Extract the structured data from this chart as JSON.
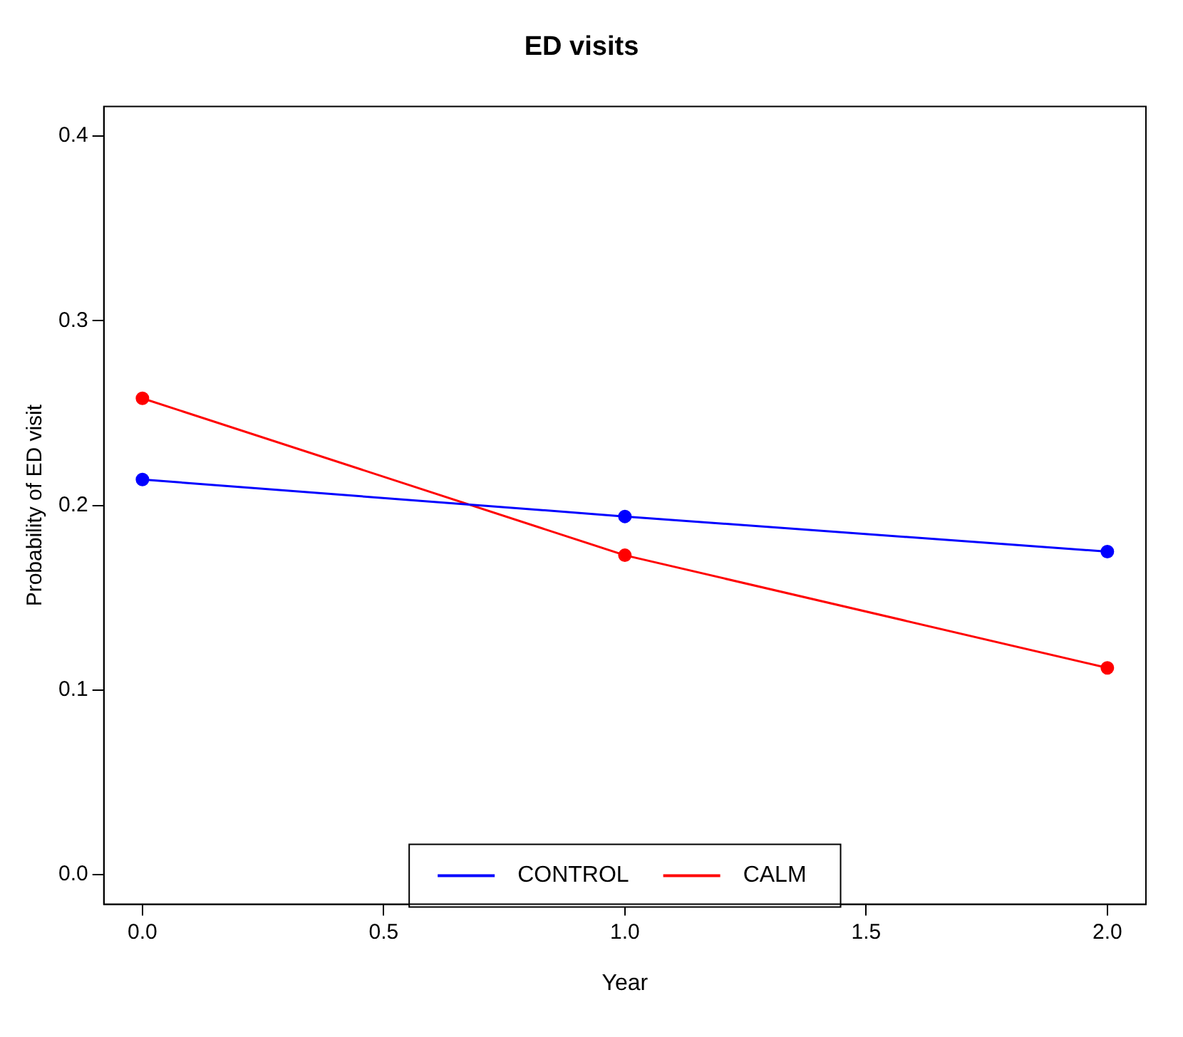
{
  "chart_data": {
    "type": "line",
    "title": "ED visits",
    "xlabel": "Year",
    "ylabel": "Probability of ED visit",
    "x": [
      0,
      1,
      2
    ],
    "series": [
      {
        "name": "CONTROL",
        "color": "#0000ff",
        "values": [
          0.214,
          0.194,
          0.175
        ]
      },
      {
        "name": "CALM",
        "color": "#ff0000",
        "values": [
          0.258,
          0.173,
          0.112
        ]
      }
    ],
    "xlim": [
      -0.08,
      2.08
    ],
    "xticks": [
      {
        "value": 0,
        "label": "0.0"
      },
      0.5,
      {
        "value": 1,
        "label": "1.0"
      },
      1.5,
      {
        "value": 2,
        "label": "2.0"
      }
    ],
    "ylim": [
      -0.016,
      0.416
    ],
    "yticks": [
      {
        "value": 0,
        "label": "0.0"
      },
      0.1,
      0.2,
      0.3,
      0.4
    ],
    "legend": "bottom",
    "marker": "circle",
    "line_style": "solid",
    "grid": false
  }
}
